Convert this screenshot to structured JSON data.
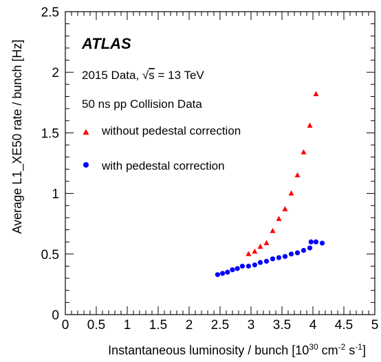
{
  "chart_data": {
    "type": "scatter",
    "xlabel": "Instantaneous luminosity / bunch [10",
    "xlabel_exp": "30",
    "xlabel_mid": " cm",
    "xlabel_exp2": "-2",
    "xlabel_mid2": " s",
    "xlabel_exp3": "-1",
    "xlabel_end": "]",
    "ylabel": "Average L1_XE50 rate / bunch [Hz]",
    "xlim": [
      0,
      5
    ],
    "ylim": [
      0,
      2.5
    ],
    "x_ticks": [
      "0",
      "0.5",
      "1",
      "1.5",
      "2",
      "2.5",
      "3",
      "3.5",
      "4",
      "4.5",
      "5"
    ],
    "y_ticks": [
      "0",
      "0.5",
      "1",
      "1.5",
      "2",
      "2.5"
    ],
    "grid": false,
    "legend_position": "top-left",
    "annotations": {
      "experiment": "ATLAS",
      "dataset_prefix": "2015 Data, ",
      "sqrt_symbol": "√",
      "sqrt_arg": "s",
      "dataset_suffix": " = 13 TeV",
      "collision": "50 ns pp Collision Data"
    },
    "series": [
      {
        "name": "without pedestal correction",
        "marker": "triangle",
        "color": "#ff0000",
        "points": [
          [
            2.96,
            0.5
          ],
          [
            3.06,
            0.52
          ],
          [
            3.15,
            0.56
          ],
          [
            3.25,
            0.59
          ],
          [
            3.35,
            0.69
          ],
          [
            3.45,
            0.79
          ],
          [
            3.55,
            0.87
          ],
          [
            3.65,
            1.0
          ],
          [
            3.75,
            1.15
          ],
          [
            3.85,
            1.34
          ],
          [
            3.95,
            1.56
          ],
          [
            4.05,
            1.82
          ]
        ]
      },
      {
        "name": "with pedestal correction",
        "marker": "circle",
        "color": "#0000ff",
        "points": [
          [
            2.46,
            0.33
          ],
          [
            2.54,
            0.34
          ],
          [
            2.62,
            0.35
          ],
          [
            2.7,
            0.37
          ],
          [
            2.78,
            0.38
          ],
          [
            2.86,
            0.4
          ],
          [
            2.96,
            0.4
          ],
          [
            3.06,
            0.41
          ],
          [
            3.15,
            0.43
          ],
          [
            3.25,
            0.44
          ],
          [
            3.35,
            0.46
          ],
          [
            3.45,
            0.47
          ],
          [
            3.55,
            0.48
          ],
          [
            3.65,
            0.5
          ],
          [
            3.75,
            0.51
          ],
          [
            3.85,
            0.53
          ],
          [
            3.95,
            0.55
          ],
          [
            3.97,
            0.6
          ],
          [
            4.05,
            0.6
          ],
          [
            4.15,
            0.59
          ]
        ]
      }
    ]
  }
}
